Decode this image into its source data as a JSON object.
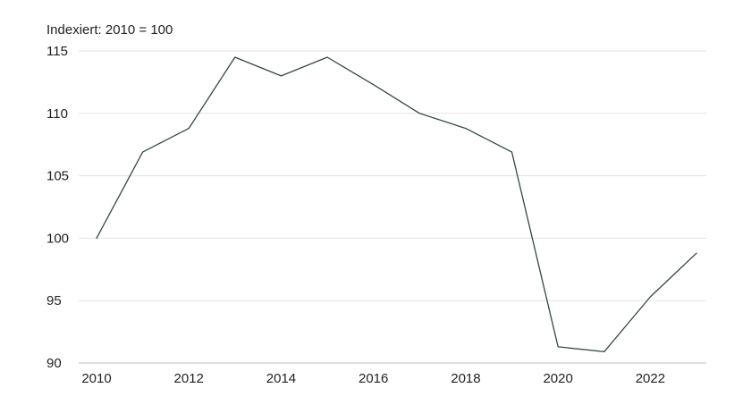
{
  "chart_data": {
    "type": "line",
    "title": "",
    "ylabel": "Indexiert: 2010 = 100",
    "xlabel": "",
    "x": [
      2010,
      2011,
      2012,
      2013,
      2014,
      2015,
      2016,
      2017,
      2018,
      2019,
      2020,
      2021,
      2022,
      2023
    ],
    "xticks": [
      "2010",
      "2012",
      "2014",
      "2016",
      "2018",
      "2020",
      "2022"
    ],
    "yticks": [
      "90",
      "95",
      "100",
      "105",
      "110",
      "115"
    ],
    "xlim": [
      2010,
      2023
    ],
    "ylim": [
      90,
      115
    ],
    "grid": true,
    "series": [
      {
        "name": "",
        "color": "#35483f",
        "values": [
          100,
          106.9,
          108.8,
          114.5,
          113,
          114.5,
          112.3,
          110,
          108.8,
          106.9,
          91.3,
          90.9,
          95.3,
          98.8
        ]
      }
    ]
  }
}
